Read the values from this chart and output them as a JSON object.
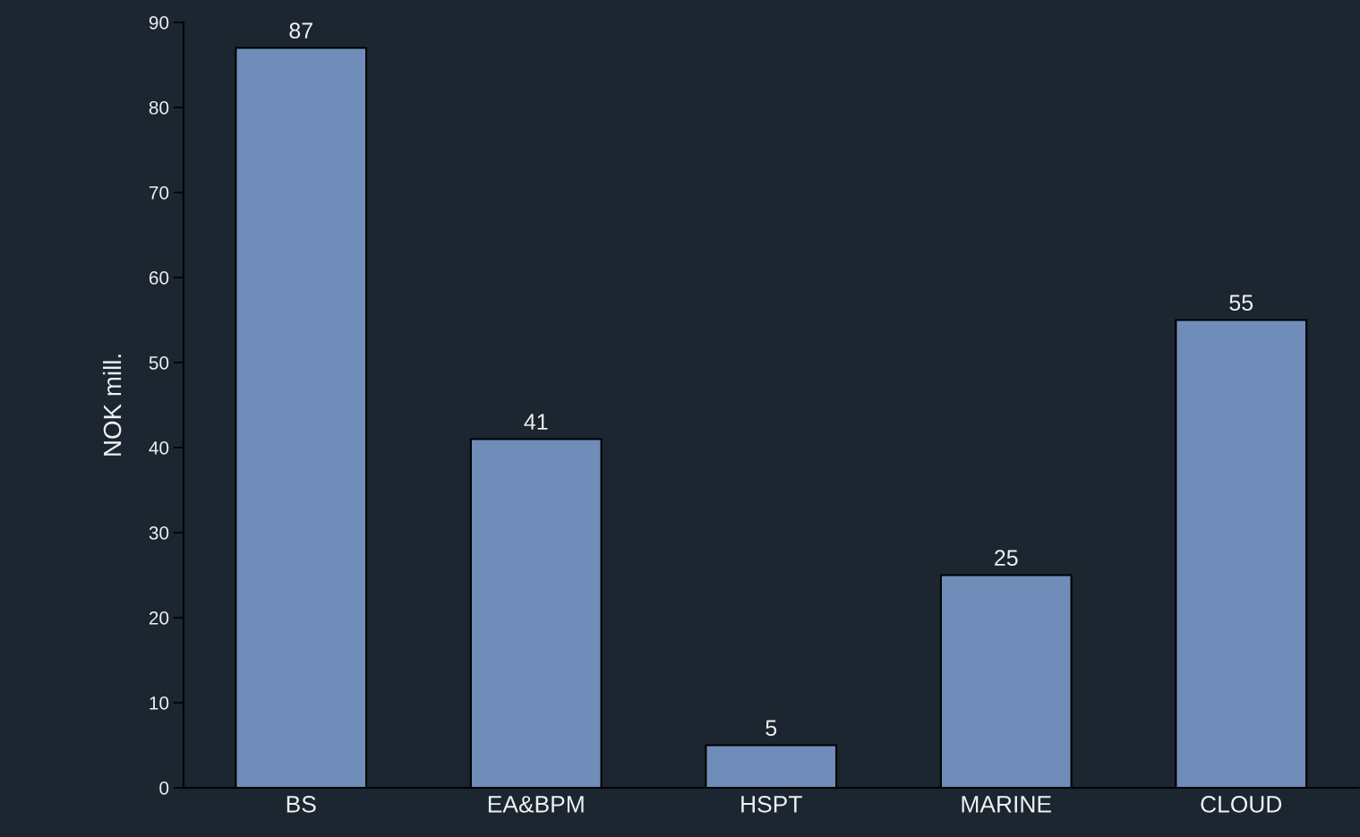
{
  "chart_data": {
    "type": "bar",
    "ylabel": "NOK mill.",
    "categories": [
      "BS",
      "EA&BPM",
      "HSPT",
      "MARINE",
      "CLOUD"
    ],
    "values": [
      87,
      41,
      5,
      25,
      55
    ],
    "color": "#6f8db8",
    "ylim": [
      0,
      90
    ],
    "yticks": [
      0,
      10,
      20,
      30,
      40,
      50,
      60,
      70,
      80,
      90
    ],
    "data_labels": true,
    "grid": false,
    "legend": false
  }
}
